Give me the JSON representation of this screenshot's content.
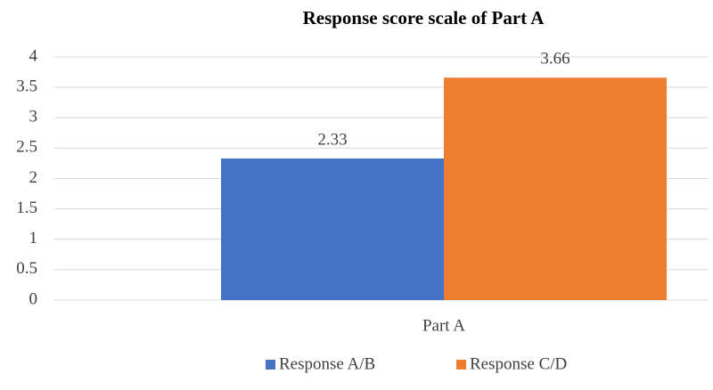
{
  "chart_data": {
    "type": "bar",
    "title": "Response score scale of Part A",
    "categories": [
      "Part A"
    ],
    "series": [
      {
        "name": "Response A/B",
        "color": "#4472c4",
        "values": [
          2.33
        ]
      },
      {
        "name": "Response C/D",
        "color": "#ed7d31",
        "values": [
          3.66
        ]
      }
    ],
    "ylim": [
      0,
      4
    ],
    "yticks": [
      0,
      0.5,
      1,
      1.5,
      2,
      2.5,
      3,
      3.5,
      4
    ],
    "grid": true,
    "legend": "bottom"
  }
}
